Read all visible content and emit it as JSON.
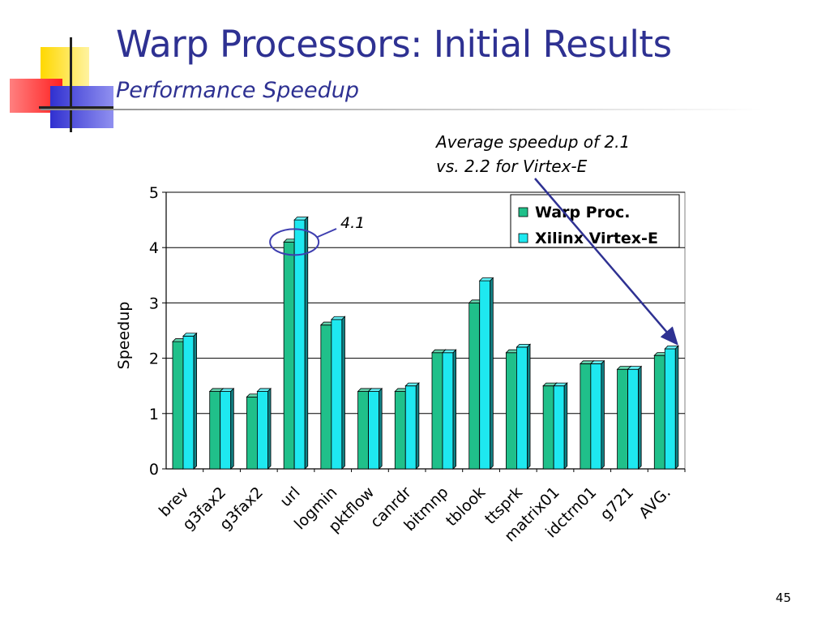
{
  "slide": {
    "title": "Warp Processors: Initial Results",
    "subtitle": "Performance Speedup",
    "note_lines": [
      "Average speedup of 2.1",
      "vs. 2.2 for Virtex-E"
    ],
    "page_number": "45",
    "title_color": "#2e3192"
  },
  "chart_data": {
    "type": "bar",
    "categories": [
      "brev",
      "g3fax2",
      "g3fax2",
      "url",
      "logmin",
      "pktflow",
      "canrdr",
      "bitmnp",
      "tblook",
      "ttsprk",
      "matrix01",
      "idctrn01",
      "g721",
      "AVG."
    ],
    "series": [
      {
        "name": "Warp Proc.",
        "color": "#20c08a",
        "values": [
          2.3,
          1.4,
          1.3,
          4.1,
          2.6,
          1.4,
          1.4,
          2.1,
          3.0,
          2.1,
          1.5,
          1.9,
          1.8,
          2.05
        ]
      },
      {
        "name": "Xilinx Virtex-E",
        "color": "#1ee8f0",
        "values": [
          2.4,
          1.4,
          1.4,
          4.5,
          2.7,
          1.4,
          1.5,
          2.1,
          3.4,
          2.2,
          1.5,
          1.9,
          1.8,
          2.17
        ]
      }
    ],
    "ylabel": "Speedup",
    "xlabel": "",
    "ylim": [
      0,
      5
    ],
    "yticks": [
      "0",
      "1",
      "2",
      "3",
      "4",
      "5"
    ],
    "grid": true,
    "legend_position": "top-right",
    "callout": {
      "text": "4.1",
      "category": "url"
    }
  }
}
